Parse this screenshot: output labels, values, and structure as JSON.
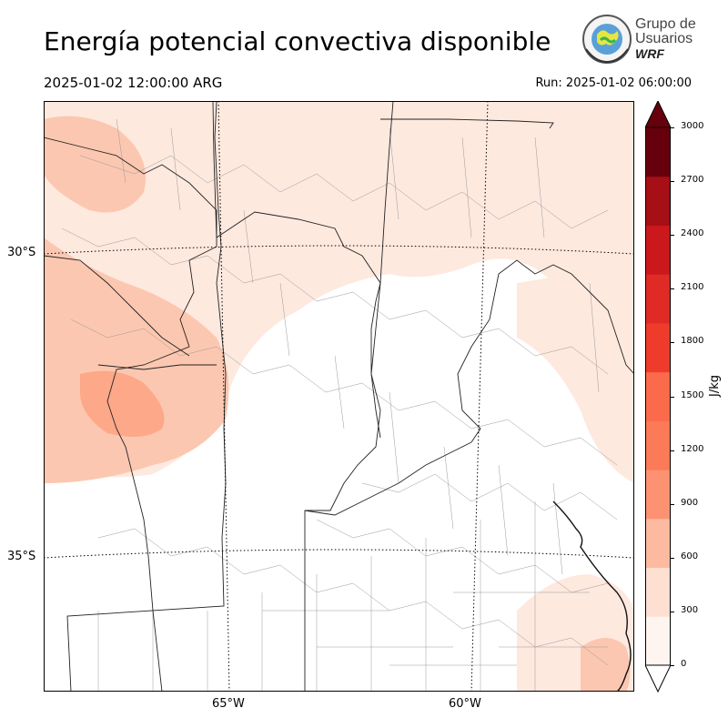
{
  "title": "Energía potencial convectiva disponible",
  "valid_time": "2025-01-02 12:00:00 ARG",
  "run_time": "Run: 2025-01-02 06:00:00",
  "logo": {
    "line1": "Grupo de",
    "line2": "Usuarios",
    "line3": "WRF"
  },
  "map": {
    "lat_labels": [
      "30°S",
      "35°S"
    ],
    "lon_labels": [
      "65°W",
      "60°W"
    ],
    "fill_colors": [
      "#fee9df",
      "#fcc7b0",
      "#fca889"
    ]
  },
  "colorbar": {
    "label": "J/kg",
    "ticks": [
      "0",
      "300",
      "600",
      "900",
      "1200",
      "1500",
      "1800",
      "2100",
      "2400",
      "2700",
      "3000"
    ],
    "colors": [
      "#fff5f0",
      "#fee0d2",
      "#fcbba1",
      "#fc9272",
      "#fb7a58",
      "#fb6a4a",
      "#ef3b2c",
      "#e02a25",
      "#cb181d",
      "#a50f15",
      "#67000d"
    ],
    "under_color": "#ffffff",
    "over_color": "#67000d"
  }
}
